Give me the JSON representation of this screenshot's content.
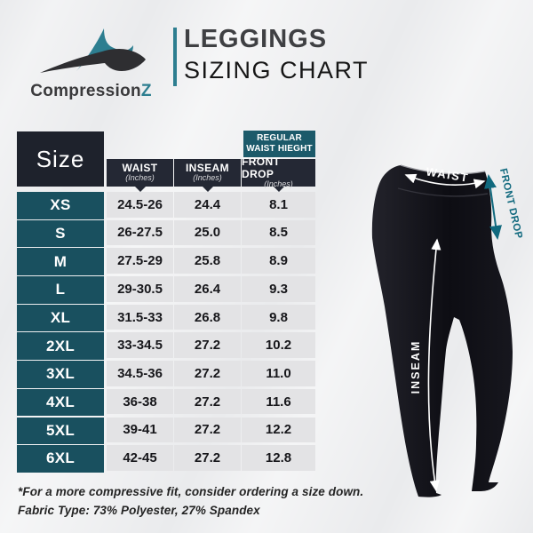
{
  "brand": {
    "text": "Compression",
    "accent": "Z"
  },
  "header": {
    "title_line1": "LEGGINGS",
    "title_line2": "SIZING CHART"
  },
  "table": {
    "size_header": "Size",
    "regular_waist_label": "REGULAR\nWAIST HIEGHT",
    "columns": [
      {
        "label": "WAIST",
        "unit": "(Inches)"
      },
      {
        "label": "INSEAM",
        "unit": "(Inches)"
      },
      {
        "label": "FRONT DROP",
        "unit": "(Inches)"
      }
    ]
  },
  "chart_data": {
    "type": "table",
    "title": "LEGGINGS SIZING CHART",
    "columns": [
      "Size",
      "WAIST (Inches)",
      "INSEAM (Inches)",
      "FRONT DROP (Inches)"
    ],
    "rows": [
      [
        "XS",
        "24.5-26",
        "24.4",
        "8.1"
      ],
      [
        "S",
        "26-27.5",
        "25.0",
        "8.5"
      ],
      [
        "M",
        "27.5-29",
        "25.8",
        "8.9"
      ],
      [
        "L",
        "29-30.5",
        "26.4",
        "9.3"
      ],
      [
        "XL",
        "31.5-33",
        "26.8",
        "9.8"
      ],
      [
        "2XL",
        "33-34.5",
        "27.2",
        "10.2"
      ],
      [
        "3XL",
        "34.5-36",
        "27.2",
        "11.0"
      ],
      [
        "4XL",
        "36-38",
        "27.2",
        "11.6"
      ],
      [
        "5XL",
        "39-41",
        "27.2",
        "12.2"
      ],
      [
        "6XL",
        "42-45",
        "27.2",
        "12.8"
      ]
    ]
  },
  "notes": {
    "line1": "*For a more compressive fit, consider ordering a size down.",
    "line2": "Fabric Type: 73% Polyester, 27% Spandex"
  },
  "diagram": {
    "waist_label": "WAIST",
    "front_drop_label": "FRONT DROP",
    "inseam_label": "INSEAM"
  },
  "colors": {
    "logo_teal": "#2d7e90",
    "size_cell_teal": "#19505f",
    "regular_box_teal": "#1c5a6a",
    "header_charcoal": "#242834",
    "size_box_charcoal": "#1e222c",
    "cell_bg": "#e3e3e5",
    "annotation_teal": "#10697e"
  }
}
